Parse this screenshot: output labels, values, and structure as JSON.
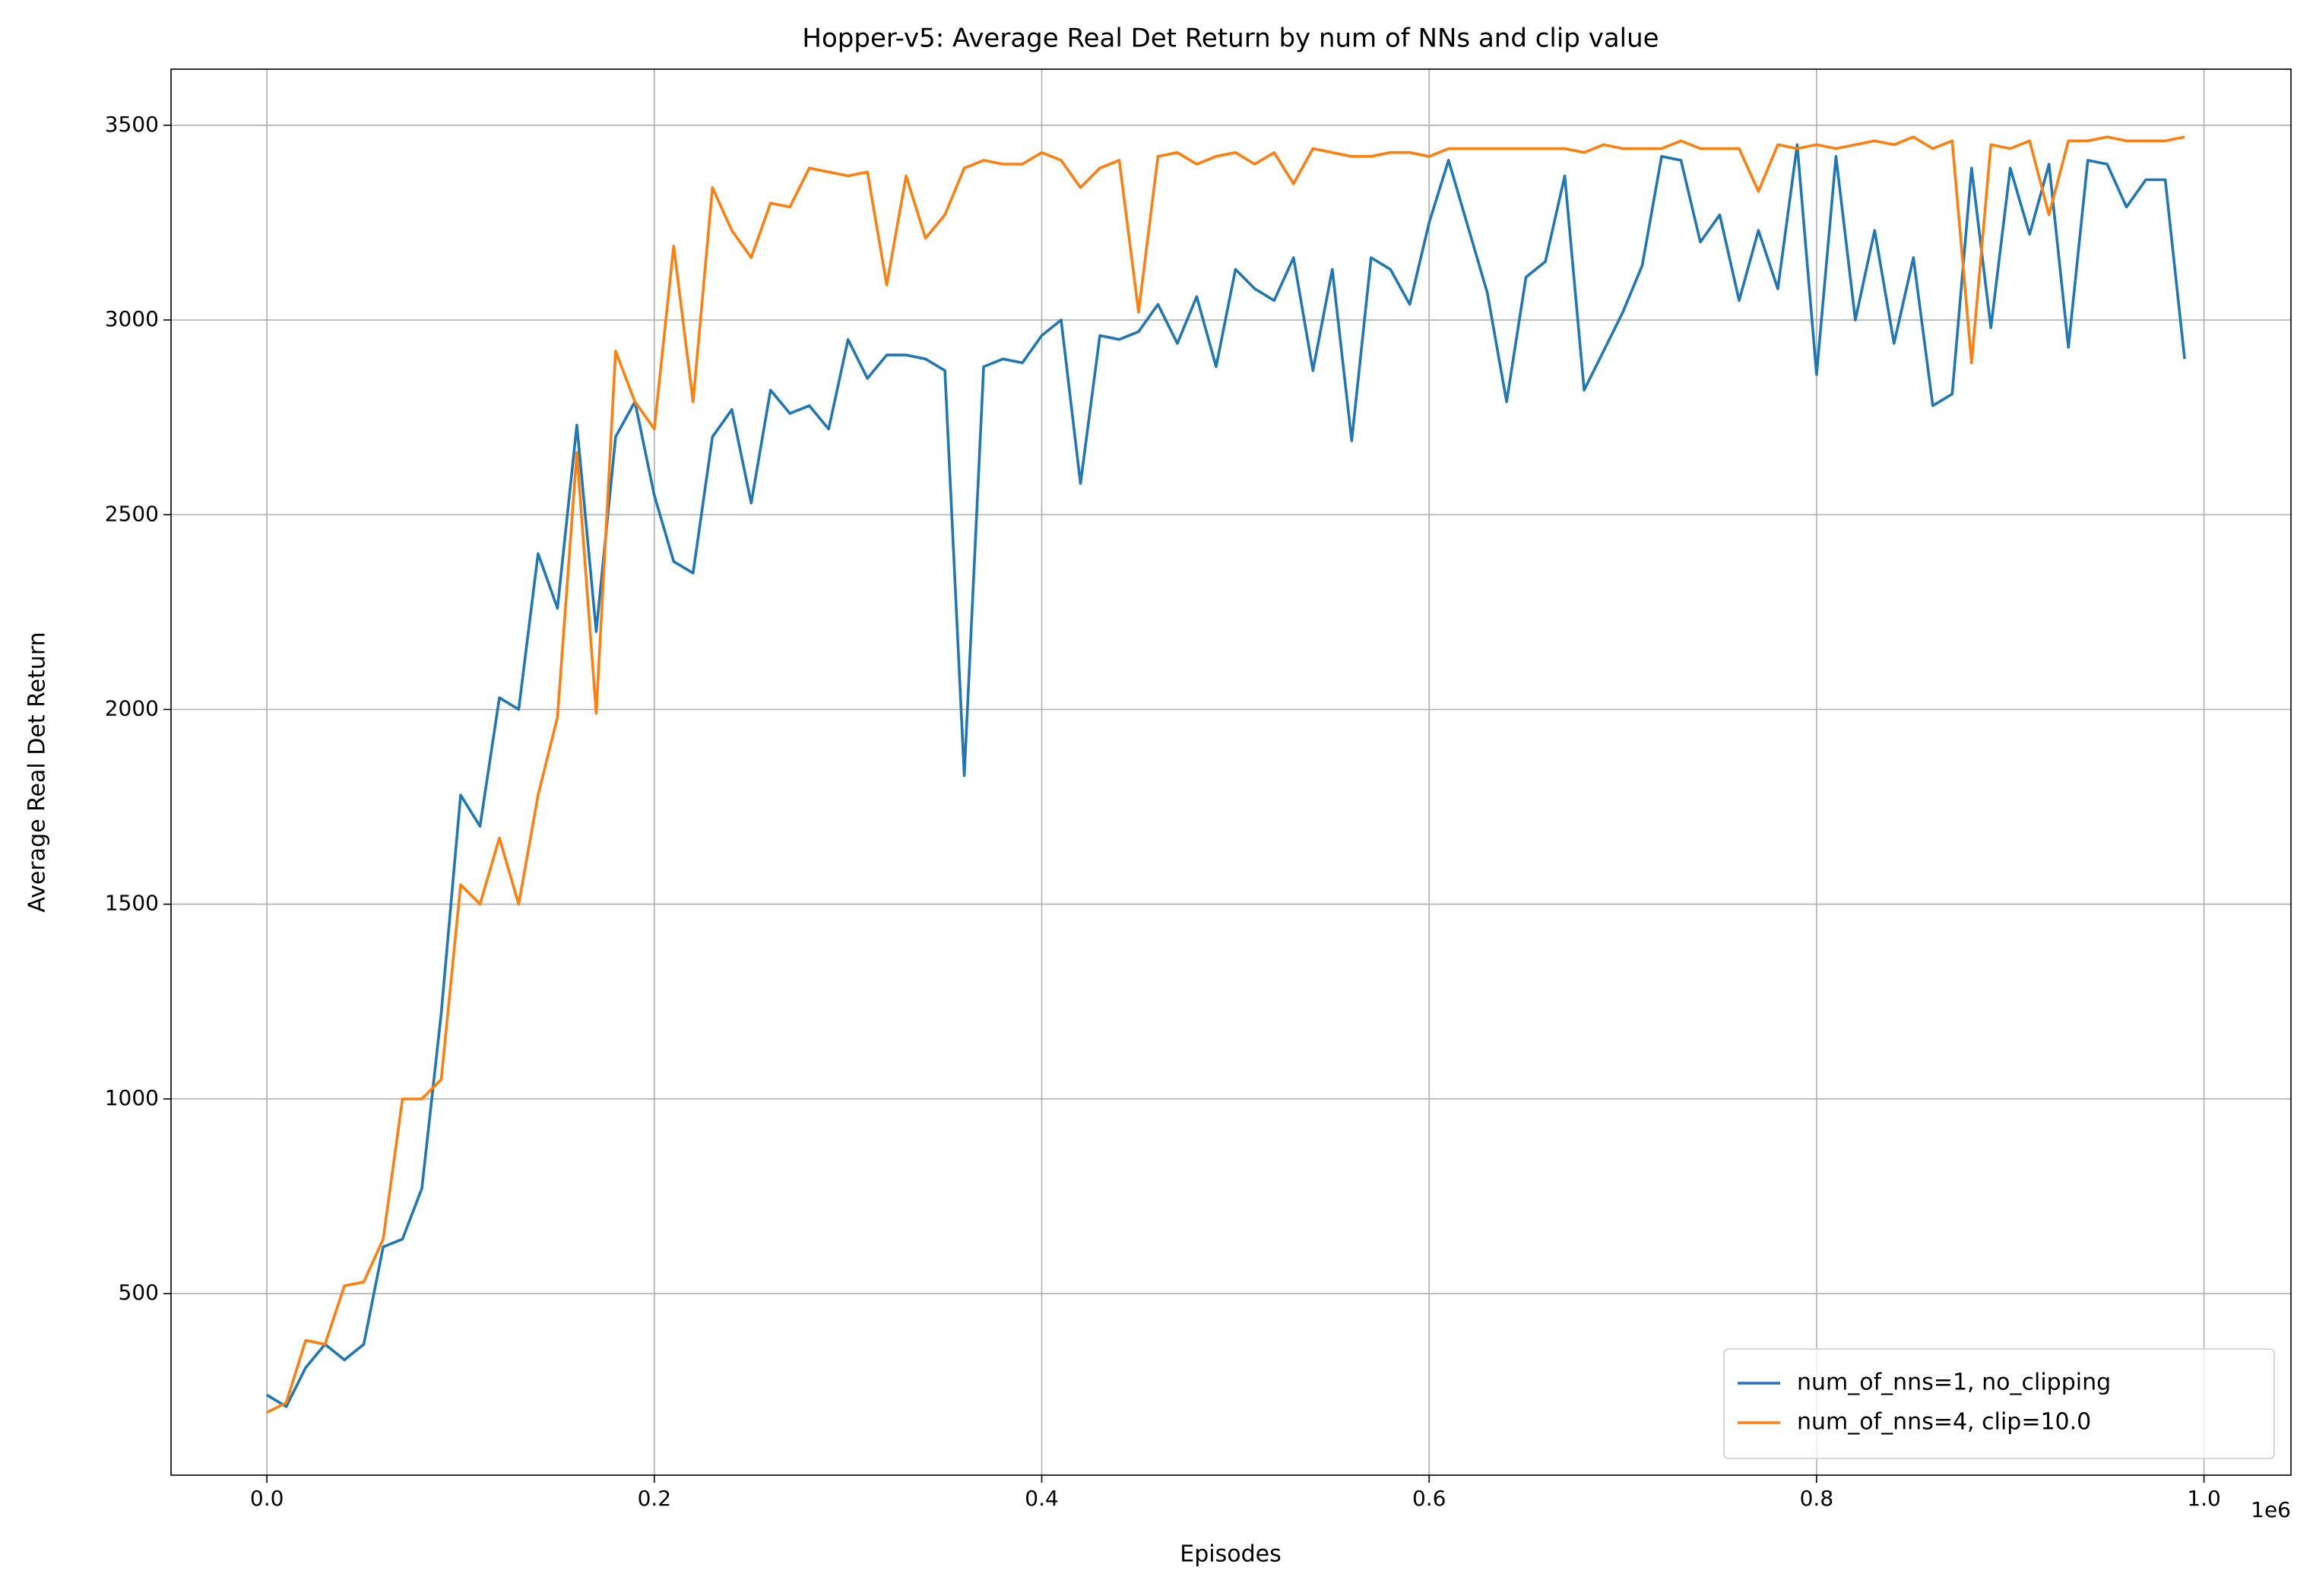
{
  "chart_data": {
    "type": "line",
    "title": "Hopper-v5: Average Real Det Return by num of NNs and clip value",
    "x_label": "Episodes",
    "y_label": "Average Real Det Return",
    "x_offset_label": "1e6",
    "x": [
      0,
      10000,
      20000,
      30000,
      40000,
      50000,
      60000,
      70000,
      80000,
      90000,
      100000,
      110000,
      120000,
      130000,
      140000,
      150000,
      160000,
      170000,
      180000,
      190000,
      200000,
      210000,
      220000,
      230000,
      240000,
      250000,
      260000,
      270000,
      280000,
      290000,
      300000,
      310000,
      320000,
      330000,
      340000,
      350000,
      360000,
      370000,
      380000,
      390000,
      400000,
      410000,
      420000,
      430000,
      440000,
      450000,
      460000,
      470000,
      480000,
      490000,
      500000,
      510000,
      520000,
      530000,
      540000,
      550000,
      560000,
      570000,
      580000,
      590000,
      600000,
      610000,
      620000,
      630000,
      640000,
      650000,
      660000,
      670000,
      680000,
      690000,
      700000,
      710000,
      720000,
      730000,
      740000,
      750000,
      760000,
      770000,
      780000,
      790000,
      800000,
      810000,
      820000,
      830000,
      840000,
      850000,
      860000,
      870000,
      880000,
      890000,
      900000,
      910000,
      920000,
      930000,
      940000,
      950000,
      960000,
      970000,
      980000,
      990000
    ],
    "series": [
      {
        "name": "num_of_nns=1, no_clipping",
        "color": "#1f77b4",
        "values": [
          240,
          210,
          310,
          370,
          330,
          370,
          620,
          640,
          770,
          1220,
          1780,
          1700,
          2030,
          2000,
          2400,
          2260,
          2730,
          2200,
          2700,
          2790,
          2550,
          2380,
          2350,
          2700,
          2770,
          2530,
          2820,
          2760,
          2780,
          2720,
          2950,
          2850,
          2910,
          2910,
          2900,
          2870,
          1830,
          2880,
          2900,
          2890,
          2960,
          3000,
          2580,
          2960,
          2950,
          2970,
          3040,
          2940,
          3060,
          2880,
          3130,
          3080,
          3050,
          3160,
          2870,
          3130,
          2690,
          3160,
          3130,
          3040,
          3250,
          3410,
          3240,
          3070,
          2790,
          3110,
          3150,
          3370,
          2820,
          2920,
          3020,
          3140,
          3420,
          3410,
          3200,
          3270,
          3050,
          3230,
          3080,
          3450,
          2860,
          3420,
          3000,
          3230,
          2940,
          3160,
          2780,
          2810,
          3390,
          2980,
          3390,
          3220,
          3400,
          2930,
          3410,
          3400,
          3290,
          3360,
          3360,
          2900
        ]
      },
      {
        "name": "num_of_nns=4, clip=10.0",
        "color": "#ff7f0e",
        "values": [
          195,
          220,
          380,
          370,
          520,
          530,
          640,
          1000,
          1000,
          1050,
          1550,
          1500,
          1670,
          1500,
          1780,
          1980,
          2660,
          1990,
          2920,
          2790,
          2720,
          3190,
          2790,
          3340,
          3230,
          3160,
          3300,
          3290,
          3390,
          3380,
          3370,
          3380,
          3090,
          3370,
          3210,
          3270,
          3390,
          3410,
          3400,
          3400,
          3430,
          3410,
          3340,
          3390,
          3410,
          3020,
          3420,
          3430,
          3400,
          3420,
          3430,
          3400,
          3430,
          3350,
          3440,
          3430,
          3420,
          3420,
          3430,
          3430,
          3420,
          3440,
          3440,
          3440,
          3440,
          3440,
          3440,
          3440,
          3430,
          3450,
          3440,
          3440,
          3440,
          3460,
          3440,
          3440,
          3440,
          3330,
          3450,
          3440,
          3450,
          3440,
          3450,
          3460,
          3450,
          3470,
          3440,
          3460,
          2890,
          3450,
          3440,
          3460,
          3270,
          3460,
          3460,
          3470,
          3460,
          3460,
          3460,
          3470
        ]
      }
    ],
    "xlim": [
      -49500,
      1044900
    ],
    "ylim": [
      34,
      3644
    ],
    "xticks": [
      {
        "value": 0,
        "label": "0.0"
      },
      {
        "value": 200000,
        "label": "0.2"
      },
      {
        "value": 400000,
        "label": "0.4"
      },
      {
        "value": 600000,
        "label": "0.6"
      },
      {
        "value": 800000,
        "label": "0.8"
      },
      {
        "value": 1000000,
        "label": "1.0"
      }
    ],
    "yticks": [
      500,
      1000,
      1500,
      2000,
      2500,
      3000,
      3500
    ],
    "grid": true,
    "legend": "lower right"
  }
}
